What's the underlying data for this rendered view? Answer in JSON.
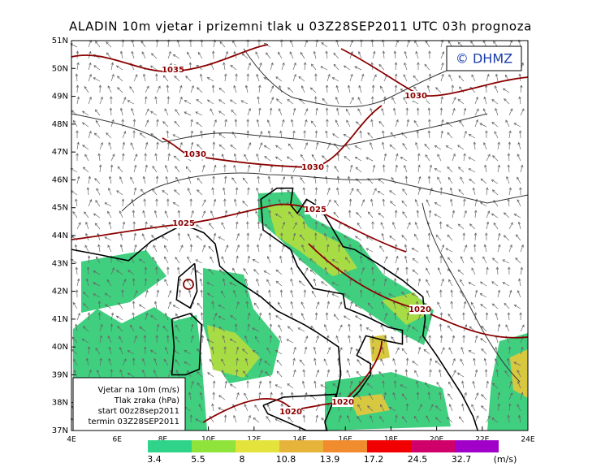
{
  "header": {
    "title": "ALADIN 10m vjetar i prizemni tlak u 03Z28SEP2011 UTC 03h prognoza"
  },
  "copyright": "© DHMZ",
  "lat_labels": [
    "51N",
    "50N",
    "49N",
    "48N",
    "47N",
    "46N",
    "45N",
    "44N",
    "43N",
    "42N",
    "41N",
    "40N",
    "39N",
    "38N",
    "37N"
  ],
  "lon_labels": [
    "4E",
    "6E",
    "8E",
    "10E",
    "12E",
    "14E",
    "16E",
    "18E",
    "20E",
    "22E",
    "24E"
  ],
  "isobar_labels": [
    "1035",
    "1030",
    "1030",
    "1030",
    "1025",
    "1025",
    "1020",
    "1020",
    "1020"
  ],
  "info_box": [
    "Vjetar na 10m (m/s)",
    "Tlak zraka (hPa)",
    "start 00z28sep2011",
    "termin 03Z28SEP2011"
  ],
  "colorbar": {
    "labels": [
      "3.4",
      "5.5",
      "8",
      "10.8",
      "13.9",
      "17.2",
      "24.5",
      "32.7"
    ],
    "colors": [
      "#2fd38a",
      "#8fe33b",
      "#e3e33b",
      "#e6b43a",
      "#f08c2e",
      "#f00000",
      "#d0006a",
      "#a000c8"
    ],
    "unit": "(m/s)"
  }
}
